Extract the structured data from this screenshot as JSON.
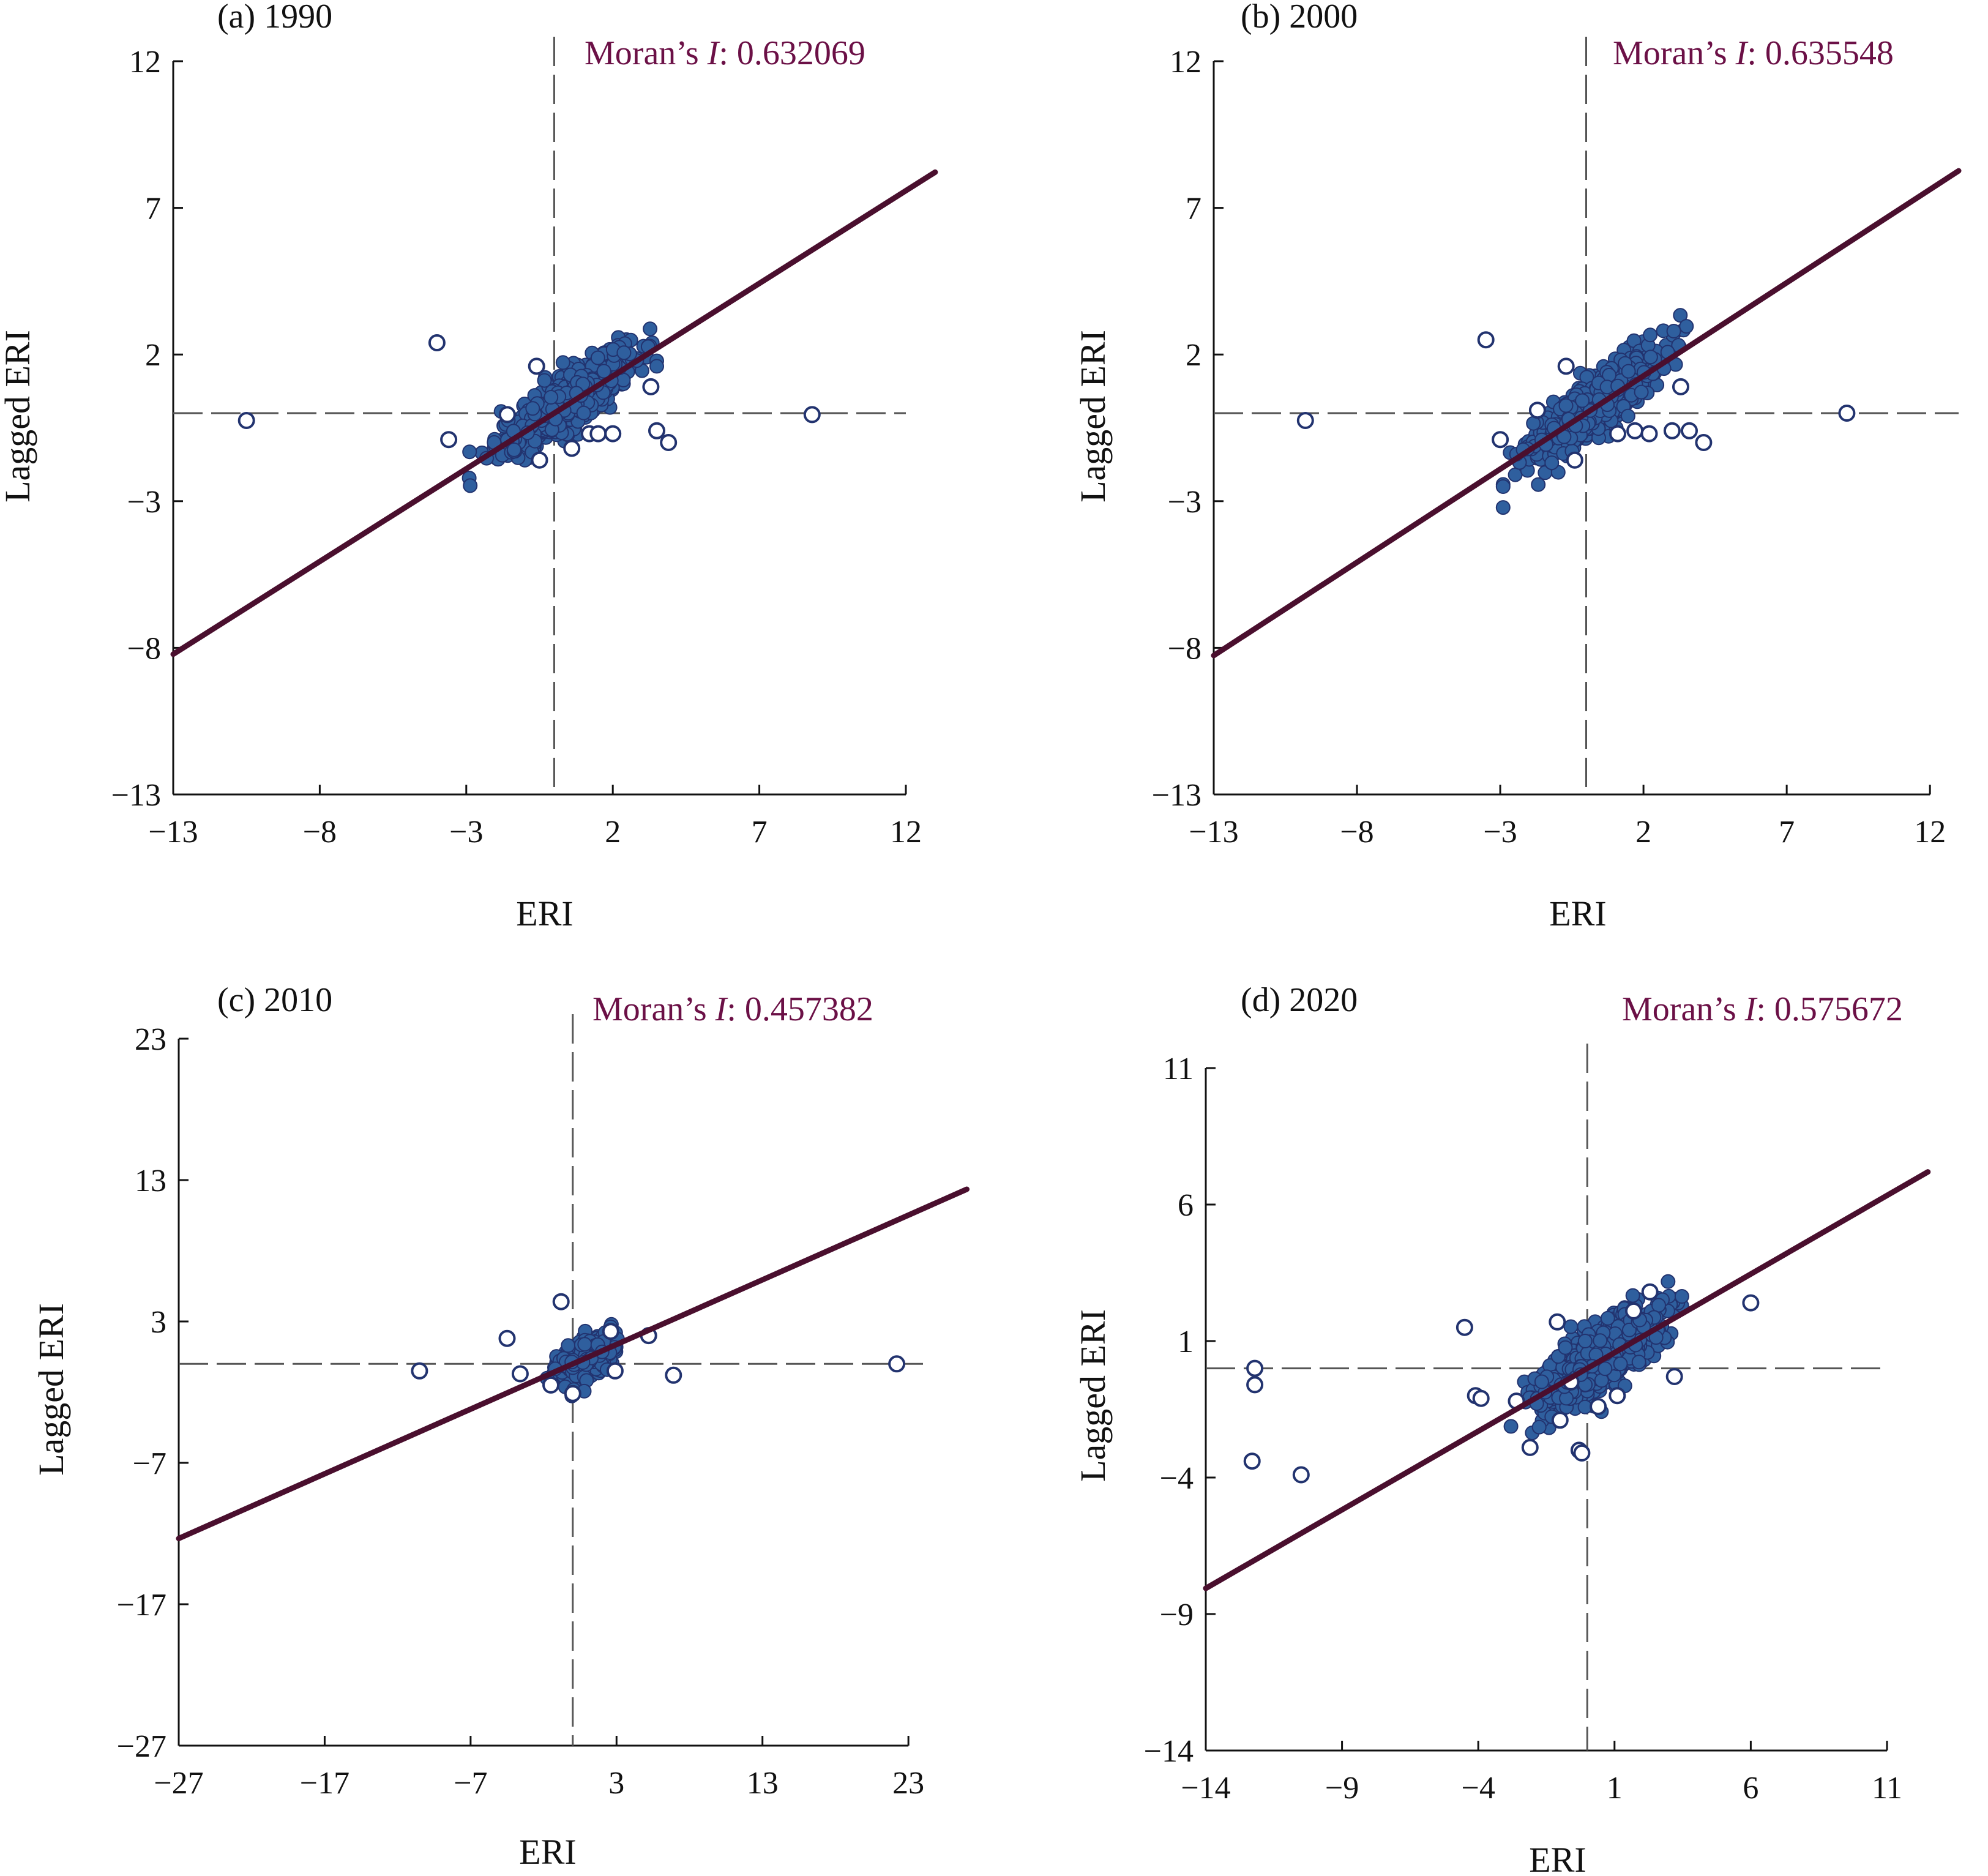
{
  "colors": {
    "regression_line": "#4a0f2e",
    "points_fill": "#2f5f9e",
    "points_stroke": "#22336f",
    "moran_text": "#6b1046",
    "dashed_line": "#555555",
    "axis": "#111111"
  },
  "chart_data": [
    {
      "type": "scatter",
      "title": "(a) 1990",
      "moran_label": "Moran’s ",
      "moran_italic": "I",
      "moran_value": ": 0.632069",
      "xlabel": "ERI",
      "ylabel": "Lagged ERI",
      "xlim": [
        -13,
        12
      ],
      "ylim": [
        -13,
        12
      ],
      "xticks": [
        "−13",
        "−8",
        "−3",
        "2",
        "7",
        "12"
      ],
      "yticks": [
        "12",
        "7",
        "2",
        "−3",
        "−8",
        "−13"
      ],
      "grid": false,
      "regression_slope": 0.632069,
      "regression_x_range": [
        -13,
        13
      ],
      "cluster": {
        "center": [
          0.3,
          0.3
        ],
        "x_spread": 2.0,
        "y_spread": 1.0,
        "n": 800
      },
      "outliers": [
        [
          -10.5,
          -0.25
        ],
        [
          -4.0,
          2.4
        ],
        [
          -3.6,
          -0.9
        ],
        [
          -1.6,
          -0.05
        ],
        [
          -0.6,
          1.6
        ],
        [
          1.2,
          -0.7
        ],
        [
          1.5,
          -0.7
        ],
        [
          2.0,
          -0.7
        ],
        [
          3.3,
          0.9
        ],
        [
          3.5,
          -0.6
        ],
        [
          3.9,
          -1.0
        ],
        [
          8.8,
          -0.05
        ],
        [
          -0.5,
          -1.6
        ],
        [
          0.6,
          -1.2
        ]
      ]
    },
    {
      "type": "scatter",
      "title": "(b) 2000",
      "moran_label": "Moran’s ",
      "moran_italic": "I",
      "moran_value": ": 0.635548",
      "xlabel": "ERI",
      "ylabel": "Lagged ERI",
      "xlim": [
        -13,
        13
      ],
      "ylim": [
        -13,
        12
      ],
      "xticks": [
        "−13",
        "−8",
        "−3",
        "2",
        "7",
        "12"
      ],
      "yticks": [
        "12",
        "7",
        "2",
        "−3",
        "−8",
        "−13"
      ],
      "grid": false,
      "regression_slope": 0.635548,
      "regression_x_range": [
        -13,
        13
      ],
      "cluster": {
        "center": [
          0.3,
          0.3
        ],
        "x_spread": 2.0,
        "y_spread": 1.0,
        "n": 800
      },
      "outliers": [
        [
          -9.8,
          -0.25
        ],
        [
          -3.5,
          2.5
        ],
        [
          -3.0,
          -0.9
        ],
        [
          -1.7,
          0.1
        ],
        [
          -0.7,
          1.6
        ],
        [
          1.1,
          -0.7
        ],
        [
          1.7,
          -0.6
        ],
        [
          2.2,
          -0.7
        ],
        [
          3.0,
          -0.6
        ],
        [
          3.3,
          0.9
        ],
        [
          3.6,
          -0.6
        ],
        [
          4.1,
          -1.0
        ],
        [
          9.1,
          0.0
        ],
        [
          -0.4,
          -1.6
        ]
      ]
    },
    {
      "type": "scatter",
      "title": "(c) 2010",
      "moran_label": "Moran’s ",
      "moran_italic": "I",
      "moran_value": ": 0.457382",
      "xlabel": "ERI",
      "ylabel": "Lagged ERI",
      "xlim": [
        -27,
        24
      ],
      "ylim": [
        -27,
        23
      ],
      "xticks": [
        "−27",
        "−17",
        "−7",
        "3",
        "13",
        "23"
      ],
      "yticks": [
        "23",
        "13",
        "3",
        "−7",
        "−17",
        "−27"
      ],
      "grid": false,
      "regression_slope": 0.457382,
      "regression_x_range": [
        -27,
        27
      ],
      "cluster": {
        "center": [
          0.9,
          0.3
        ],
        "x_spread": 1.7,
        "y_spread": 1.4,
        "n": 600
      },
      "outliers": [
        [
          -10.5,
          -0.5
        ],
        [
          -4.5,
          1.8
        ],
        [
          -3.6,
          -0.7
        ],
        [
          -0.8,
          4.4
        ],
        [
          2.6,
          2.3
        ],
        [
          2.9,
          -0.5
        ],
        [
          5.2,
          2.0
        ],
        [
          6.9,
          -0.8
        ],
        [
          22.2,
          0.0
        ],
        [
          -1.5,
          -1.5
        ],
        [
          0.0,
          -2.1
        ]
      ]
    },
    {
      "type": "scatter",
      "title": "(d) 2020",
      "moran_label": "Moran’s ",
      "moran_italic": "I",
      "moran_value": ": 0.575672",
      "xlabel": "ERI",
      "ylabel": "Lagged ERI",
      "xlim": [
        -14,
        11
      ],
      "ylim": [
        -14,
        11
      ],
      "xticks": [
        "−14",
        "−9",
        "−4",
        "1",
        "6",
        "11"
      ],
      "yticks": [
        "11",
        "6",
        "1",
        "−4",
        "−9",
        "−14"
      ],
      "grid": false,
      "regression_slope": 0.575672,
      "regression_x_range": [
        -14,
        12.5
      ],
      "cluster": {
        "center": [
          0.4,
          0.3
        ],
        "x_spread": 2.0,
        "y_spread": 1.3,
        "n": 800
      },
      "outliers": [
        [
          -12.2,
          0.0
        ],
        [
          -12.2,
          -0.6
        ],
        [
          -12.3,
          -3.4
        ],
        [
          -10.5,
          -3.9
        ],
        [
          -4.5,
          1.5
        ],
        [
          -4.1,
          -1.0
        ],
        [
          -3.9,
          -1.1
        ],
        [
          -2.6,
          -1.2
        ],
        [
          -2.1,
          -2.9
        ],
        [
          -1.1,
          1.7
        ],
        [
          -1.0,
          -1.9
        ],
        [
          -0.3,
          -3.0
        ],
        [
          -0.2,
          -3.1
        ],
        [
          -0.6,
          -0.5
        ],
        [
          0.4,
          -1.4
        ],
        [
          1.1,
          -1.0
        ],
        [
          1.7,
          2.1
        ],
        [
          2.3,
          2.8
        ],
        [
          3.2,
          -0.3
        ],
        [
          6.0,
          2.4
        ]
      ]
    }
  ]
}
